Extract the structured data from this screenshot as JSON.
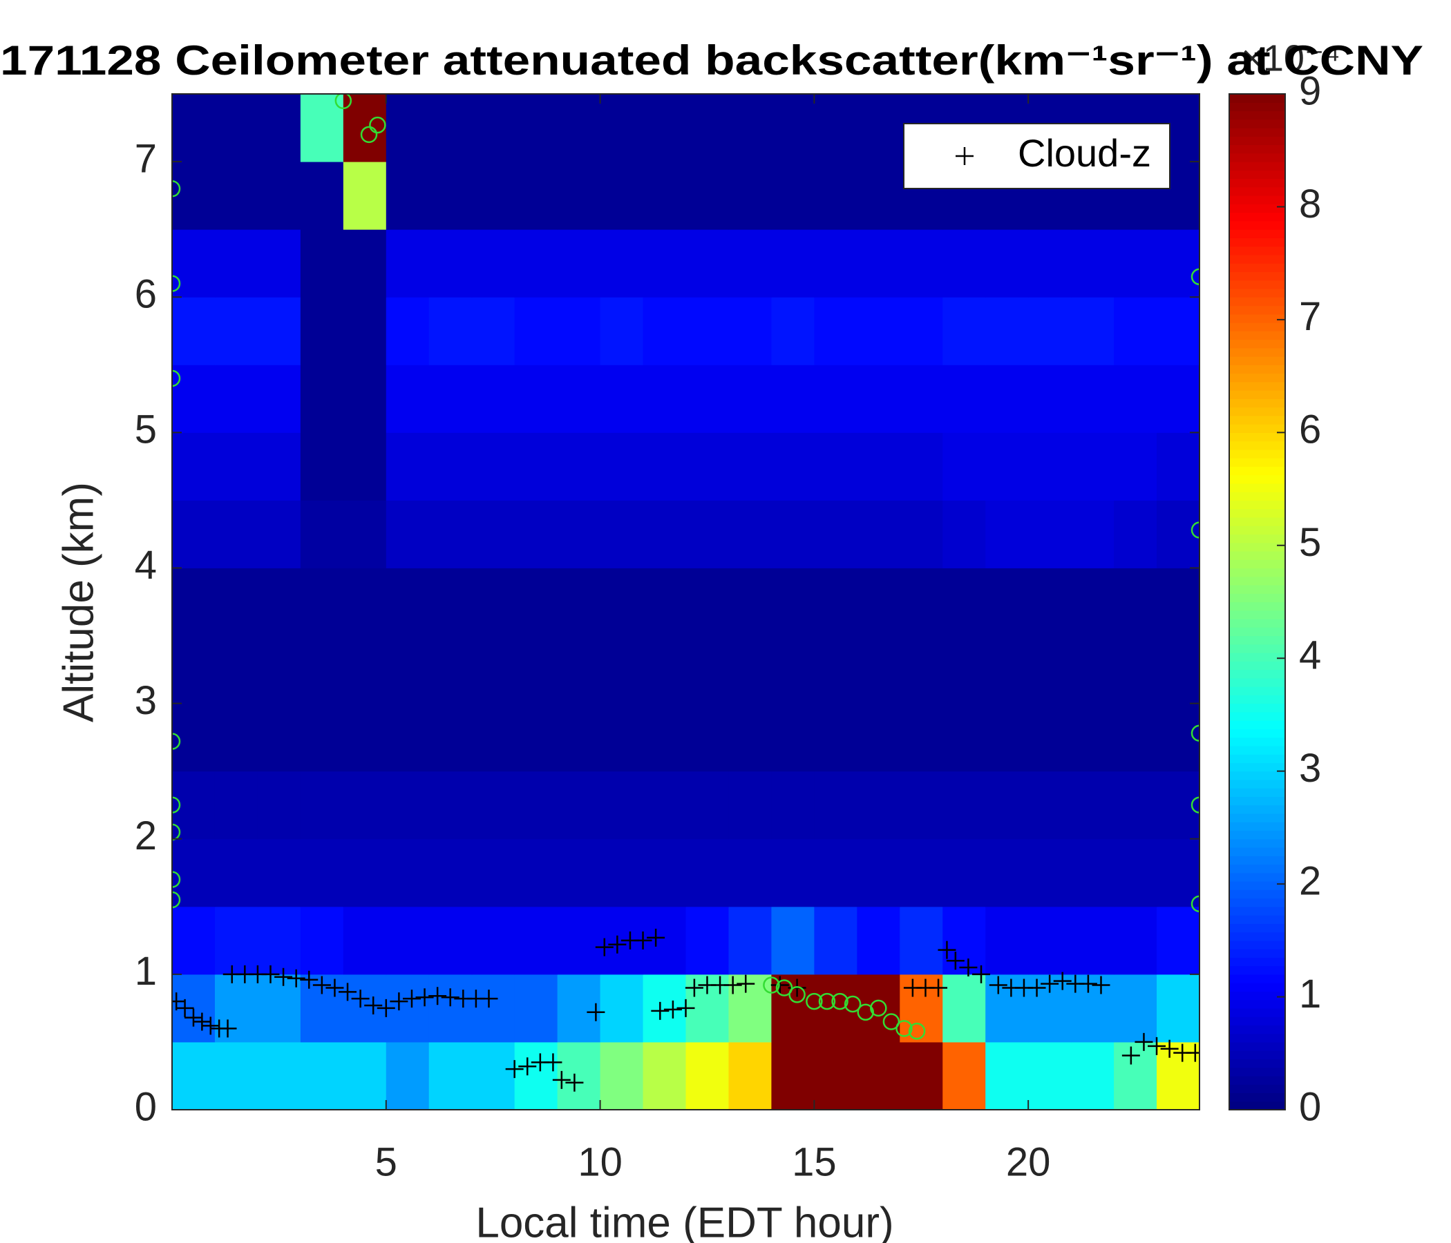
{
  "chart_data": {
    "type": "heatmap",
    "title": "171128 Ceilometer attenuated backscatter(km⁻¹sr⁻¹) at CCNY",
    "x_label": "Local time (EDT hour)",
    "y_label": "Altitude (km)",
    "xlim": [
      0,
      24
    ],
    "ylim": [
      0,
      7.5
    ],
    "xticks": [
      5,
      10,
      15,
      20
    ],
    "yticks": [
      0,
      1,
      2,
      3,
      4,
      5,
      6,
      7
    ],
    "colorbar_lim": [
      0,
      9
    ],
    "colorbar_ticks": [
      0,
      1,
      2,
      3,
      4,
      5,
      6,
      7,
      8,
      9
    ],
    "colorbar_exponent": "×10⁻⁴",
    "colormap": "jet",
    "x_edges": [
      0,
      1,
      2,
      3,
      4,
      5,
      6,
      7,
      8,
      9,
      10,
      11,
      12,
      13,
      14,
      15,
      16,
      17,
      18,
      19,
      20,
      21,
      22,
      23,
      24
    ],
    "y_edges": [
      0,
      0.5,
      1,
      1.5,
      2,
      2.5,
      3,
      3.5,
      4,
      4.5,
      5,
      5.5,
      6,
      6.5,
      7,
      7.5
    ],
    "z": [
      [
        3,
        3,
        3,
        3,
        3,
        2.5,
        3,
        3,
        3.5,
        4,
        4.5,
        5,
        5.5,
        6,
        9,
        9,
        9,
        9,
        7,
        3.5,
        3.5,
        3.5,
        4,
        5.5
      ],
      [
        2,
        2.5,
        2.5,
        2,
        2,
        2,
        2,
        2,
        2,
        2.5,
        3,
        3.5,
        4,
        4.5,
        9,
        9,
        9,
        7,
        4,
        2.5,
        2.5,
        2.5,
        2.5,
        3
      ],
      [
        1.2,
        1.3,
        1.3,
        1.2,
        1,
        1,
        1,
        1,
        1,
        1,
        1,
        1,
        1.2,
        1.5,
        2,
        1.5,
        1.2,
        1.5,
        1.2,
        1,
        1,
        1,
        1,
        1.2
      ],
      [
        0.5,
        0.5,
        0.5,
        0.5,
        0.5,
        0.5,
        0.5,
        0.5,
        0.5,
        0.5,
        0.5,
        0.5,
        0.5,
        0.5,
        0.5,
        0.5,
        0.5,
        0.5,
        0.5,
        0.5,
        0.5,
        0.5,
        0.5,
        0.5
      ],
      [
        0.4,
        0.4,
        0.4,
        0.4,
        0.4,
        0.4,
        0.4,
        0.4,
        0.4,
        0.4,
        0.4,
        0.4,
        0.4,
        0.4,
        0.4,
        0.4,
        0.4,
        0.4,
        0.4,
        0.4,
        0.4,
        0.4,
        0.4,
        0.4
      ],
      [
        0.2,
        0.2,
        0.2,
        0.2,
        0.2,
        0.2,
        0.2,
        0.2,
        0.2,
        0.2,
        0.2,
        0.2,
        0.2,
        0.2,
        0.2,
        0.2,
        0.2,
        0.2,
        0.2,
        0.2,
        0.2,
        0.2,
        0.2,
        0.2
      ],
      [
        0.2,
        0.2,
        0.2,
        0.2,
        0.2,
        0.2,
        0.2,
        0.2,
        0.2,
        0.2,
        0.2,
        0.2,
        0.2,
        0.2,
        0.2,
        0.2,
        0.2,
        0.2,
        0.2,
        0.2,
        0.2,
        0.2,
        0.2,
        0.2
      ],
      [
        0.2,
        0.2,
        0.2,
        0.2,
        0.2,
        0.2,
        0.2,
        0.2,
        0.2,
        0.2,
        0.2,
        0.2,
        0.2,
        0.2,
        0.2,
        0.2,
        0.2,
        0.2,
        0.2,
        0.2,
        0.2,
        0.2,
        0.2,
        0.2
      ],
      [
        0.6,
        0.6,
        0.6,
        0.3,
        0.3,
        0.6,
        0.6,
        0.6,
        0.6,
        0.6,
        0.6,
        0.6,
        0.6,
        0.6,
        0.6,
        0.6,
        0.6,
        0.6,
        0.7,
        0.8,
        0.8,
        0.8,
        0.7,
        0.6
      ],
      [
        0.8,
        0.8,
        0.8,
        0.2,
        0.2,
        0.8,
        0.8,
        0.8,
        0.8,
        0.8,
        0.8,
        0.8,
        0.8,
        0.8,
        0.8,
        0.8,
        0.8,
        0.8,
        0.9,
        0.9,
        0.9,
        0.9,
        0.9,
        0.8
      ],
      [
        1,
        1,
        1,
        0.2,
        0.2,
        1,
        1,
        1,
        1,
        1,
        1,
        1,
        1,
        1,
        1,
        1,
        1,
        1,
        1,
        1,
        1,
        1,
        1,
        1
      ],
      [
        1.3,
        1.3,
        1.3,
        0.2,
        0.2,
        1.2,
        1.3,
        1.3,
        1.2,
        1.2,
        1.3,
        1.2,
        1.2,
        1.2,
        1.3,
        1.2,
        1.2,
        1.2,
        1.3,
        1.3,
        1.3,
        1.3,
        1.2,
        1.2
      ],
      [
        0.9,
        0.9,
        0.9,
        0.2,
        0.2,
        0.9,
        0.9,
        0.9,
        0.9,
        0.9,
        0.9,
        0.9,
        0.9,
        0.9,
        0.9,
        0.9,
        0.9,
        0.9,
        0.9,
        0.9,
        0.9,
        0.9,
        0.9,
        0.9
      ],
      [
        0.2,
        0.2,
        0.2,
        0.2,
        5,
        0.2,
        0.2,
        0.2,
        0.2,
        0.2,
        0.2,
        0.2,
        0.2,
        0.2,
        0.2,
        0.2,
        0.2,
        0.2,
        0.2,
        0.2,
        0.2,
        0.2,
        0.2,
        0.2
      ],
      [
        0.2,
        0.2,
        0.2,
        4,
        9,
        0.2,
        0.2,
        0.2,
        0.2,
        0.2,
        0.2,
        0.2,
        0.2,
        0.2,
        0.2,
        0.2,
        0.2,
        0.2,
        0.2,
        0.2,
        0.2,
        0.2,
        0.2,
        0.2
      ]
    ],
    "legend_position": "upper right",
    "series": [
      {
        "name": "Cloud-z",
        "color": "#000000",
        "marker": "plus",
        "x": [
          0.1,
          0.3,
          0.5,
          0.7,
          0.9,
          1.1,
          1.3,
          1.4,
          1.7,
          2.0,
          2.3,
          2.6,
          2.9,
          3.2,
          3.5,
          3.8,
          4.1,
          4.4,
          4.7,
          5.0,
          5.3,
          5.6,
          5.9,
          6.2,
          6.5,
          6.8,
          7.1,
          7.4,
          8.0,
          8.3,
          8.6,
          8.9,
          9.1,
          9.4,
          9.9,
          10.1,
          10.4,
          10.7,
          11.0,
          11.3,
          11.4,
          11.7,
          12.0,
          12.2,
          12.5,
          12.8,
          13.1,
          13.4,
          14.2,
          14.6,
          17.3,
          17.6,
          17.9,
          18.1,
          18.3,
          18.6,
          18.9,
          19.3,
          19.6,
          19.9,
          20.2,
          20.5,
          20.8,
          21.1,
          21.4,
          21.7,
          22.4,
          22.7,
          23.0,
          23.3,
          23.6,
          23.9
        ],
        "y": [
          0.8,
          0.75,
          0.68,
          0.65,
          0.62,
          0.6,
          0.6,
          1.0,
          1.0,
          1.0,
          1.0,
          0.98,
          0.97,
          0.96,
          0.92,
          0.9,
          0.87,
          0.82,
          0.77,
          0.75,
          0.8,
          0.82,
          0.83,
          0.84,
          0.83,
          0.82,
          0.82,
          0.82,
          0.3,
          0.32,
          0.35,
          0.35,
          0.22,
          0.2,
          0.72,
          1.2,
          1.22,
          1.25,
          1.25,
          1.27,
          0.73,
          0.74,
          0.75,
          0.9,
          0.92,
          0.92,
          0.92,
          0.93,
          0.92,
          0.9,
          0.9,
          0.9,
          0.9,
          1.18,
          1.1,
          1.05,
          1.0,
          0.92,
          0.9,
          0.9,
          0.9,
          0.93,
          0.95,
          0.93,
          0.93,
          0.92,
          0.4,
          0.5,
          0.47,
          0.45,
          0.42,
          0.42
        ]
      },
      {
        "color": "#33dd33",
        "marker": "circle",
        "x": [
          4.0,
          4.6,
          4.8,
          14.0,
          14.3,
          14.6,
          15.0,
          15.3,
          15.6,
          15.9,
          16.2,
          16.5,
          16.8,
          17.1,
          17.4,
          0,
          0,
          0,
          0,
          0,
          0,
          0,
          0,
          24,
          24,
          24,
          24,
          24
        ],
        "y": [
          7.45,
          7.2,
          7.27,
          0.92,
          0.9,
          0.85,
          0.8,
          0.8,
          0.8,
          0.78,
          0.72,
          0.75,
          0.65,
          0.6,
          0.58,
          6.8,
          6.1,
          5.4,
          2.72,
          2.25,
          2.05,
          1.7,
          1.55,
          6.15,
          4.28,
          2.78,
          2.25,
          1.52
        ]
      }
    ]
  }
}
